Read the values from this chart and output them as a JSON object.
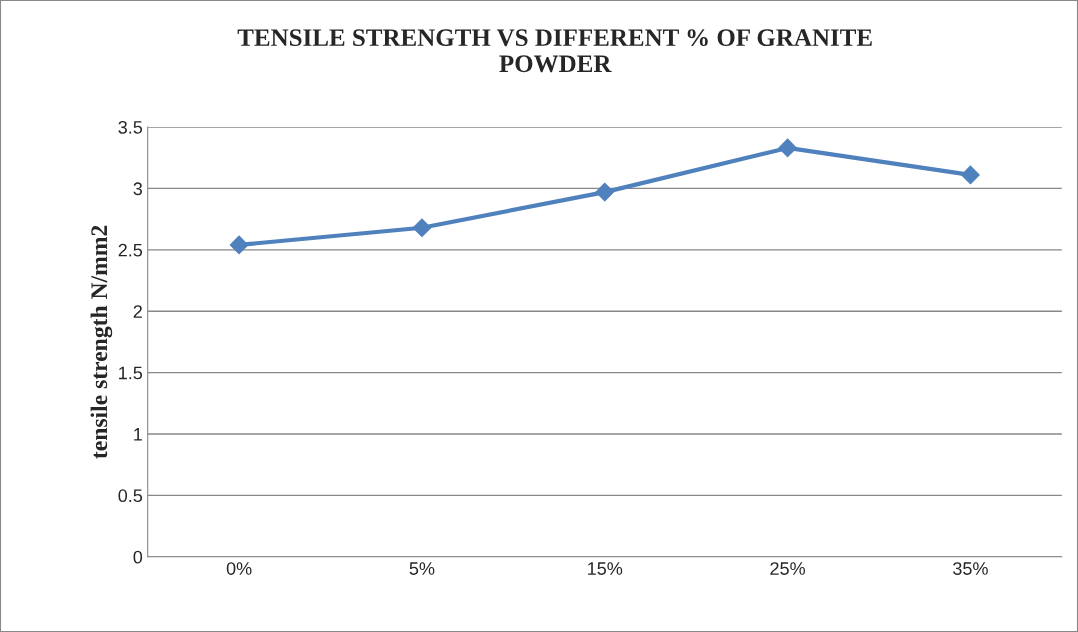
{
  "chart_data": {
    "type": "line",
    "title": "TENSILE STRENGTH VS DIFFERENT % OF GRANITE\nPOWDER",
    "ylabel": "tensile strength N/mm2",
    "categories": [
      "0%",
      "5%",
      "15%",
      "25%",
      "35%"
    ],
    "series": [
      {
        "color": "#4f81bd",
        "values": [
          2.54,
          2.68,
          2.97,
          3.33,
          3.11
        ]
      }
    ],
    "ylim": [
      0,
      3.5
    ],
    "yticks": [
      0,
      0.5,
      1,
      1.5,
      2,
      2.5,
      3,
      3.5
    ],
    "grid": "y",
    "marker": "diamond",
    "line_style": "solid"
  }
}
